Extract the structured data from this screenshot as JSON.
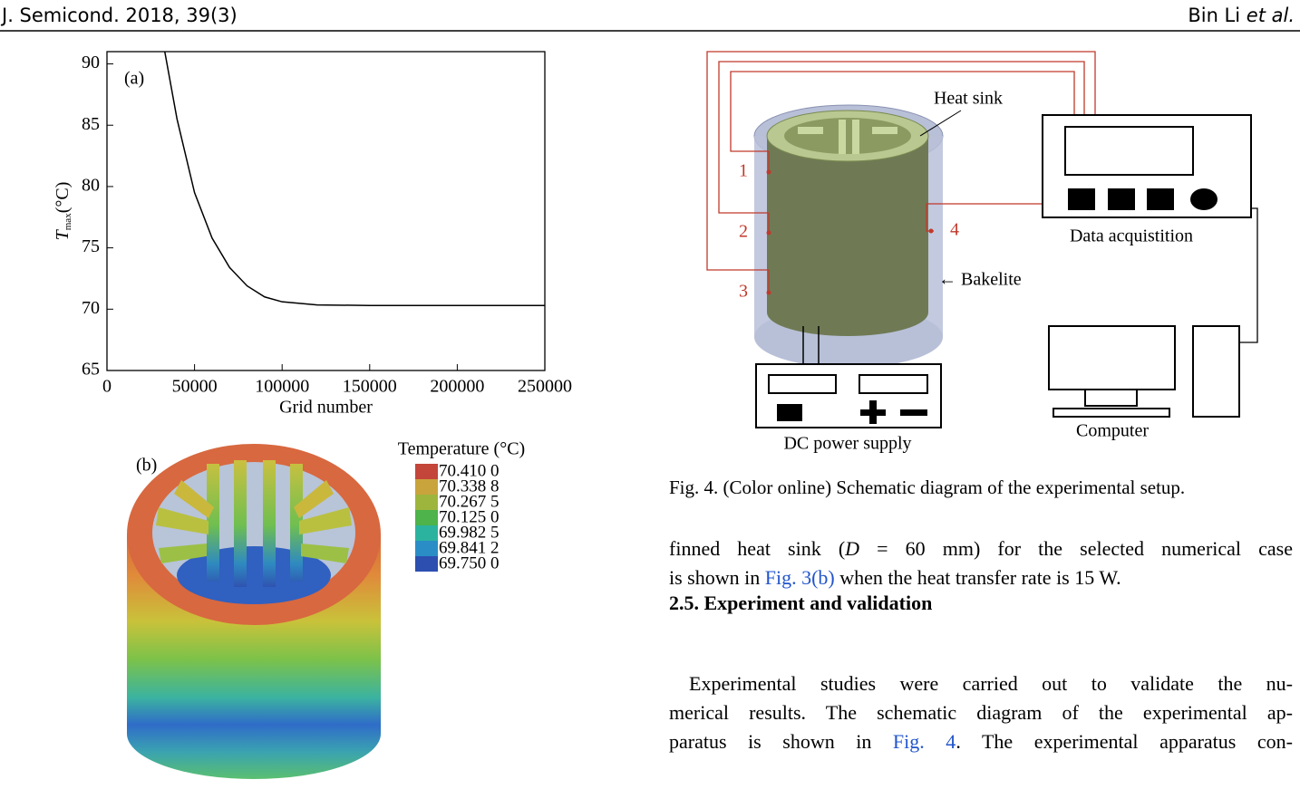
{
  "header": {
    "journal": "J. Semicond.  2018, 39(3)",
    "author": "Bin Li",
    "author_suffix": "et al."
  },
  "chart_data": {
    "type": "line",
    "annotation": "(a)",
    "xlabel": "Grid number",
    "ylabel": [
      "T",
      "max",
      "(°C)"
    ],
    "x": [
      33000,
      40000,
      50000,
      60000,
      70000,
      80000,
      90000,
      100000,
      120000,
      150000,
      200000,
      250000
    ],
    "series": [
      {
        "color": "#000000",
        "values": [
          91,
          85.5,
          79.5,
          75.8,
          73.4,
          71.9,
          71.0,
          70.6,
          70.35,
          70.3,
          70.3,
          70.3
        ]
      }
    ],
    "xlim": [
      0,
      250000
    ],
    "ylim": [
      65,
      91
    ],
    "xticks": [
      0,
      50000,
      100000,
      150000,
      200000,
      250000
    ],
    "yticks": [
      65,
      70,
      75,
      80,
      85,
      90
    ]
  },
  "figure3b": {
    "label": "(b)",
    "legend_title": "Temperature (°C)",
    "legend": [
      {
        "label": "70.410 0",
        "color": "#c4453a"
      },
      {
        "label": "70.338 8",
        "color": "#c9a33c"
      },
      {
        "label": "70.267 5",
        "color": "#9db53d"
      },
      {
        "label": "70.125 0",
        "color": "#4db34a"
      },
      {
        "label": "69.982 5",
        "color": "#2cb39f"
      },
      {
        "label": "69.841 2",
        "color": "#2b8dc6"
      },
      {
        "label": "69.750 0",
        "color": "#2c4fb0"
      }
    ]
  },
  "figure4": {
    "labels": {
      "heat_sink": "Heat sink",
      "p1": "1",
      "p2": "2",
      "p3": "3",
      "p4": "4",
      "bakelite": "← Bakelite",
      "daq": "Data acquistition",
      "computer": "Computer",
      "dc": "DC power supply"
    },
    "caption": "Fig. 4. (Color online) Schematic diagram of the experimental setup."
  },
  "body": {
    "paragraph1": [
      [
        "finned heat sink (",
        "D",
        " = 60 mm) for the selected numerical case"
      ],
      [
        "is shown in ",
        "Fig. 3(b)",
        " when the heat transfer rate is 15 W."
      ]
    ],
    "heading": "2.5.  Experiment and validation",
    "paragraph2": [
      [
        "Experimental studies were carried out to validate the nu-"
      ],
      [
        "merical results. The schematic diagram of the experimental ap-"
      ],
      [
        "paratus is shown in ",
        "Fig. 4",
        ". The experimental apparatus con-"
      ]
    ]
  }
}
